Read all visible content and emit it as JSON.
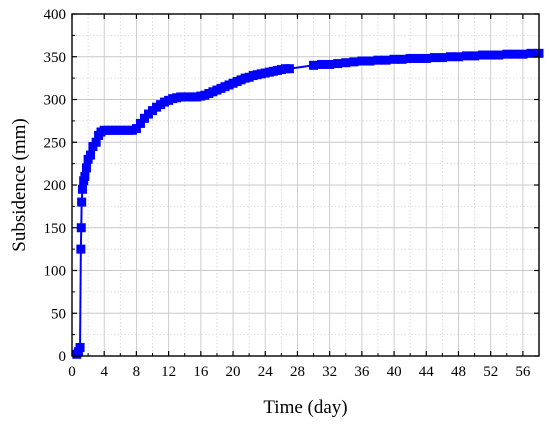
{
  "chart_data": {
    "type": "line",
    "xlabel": "Time (day)",
    "ylabel": "Subsidence (mm)",
    "xlim": [
      0,
      58
    ],
    "ylim": [
      0,
      400
    ],
    "x_ticks": [
      0,
      4,
      8,
      12,
      16,
      20,
      24,
      28,
      32,
      36,
      40,
      44,
      48,
      52,
      56
    ],
    "y_ticks": [
      0,
      50,
      100,
      150,
      200,
      250,
      300,
      350,
      400
    ],
    "grid": true,
    "minor_grid": true,
    "series": [
      {
        "color": "#0000ff",
        "marker": "square",
        "x": [
          0.6,
          0.8,
          1.0,
          1.1,
          1.15,
          1.2,
          1.3,
          1.45,
          1.6,
          1.8,
          2.0,
          2.3,
          2.6,
          3.0,
          3.3,
          3.6,
          4.0,
          4.5,
          5.0,
          5.5,
          6.0,
          6.5,
          7.0,
          7.5,
          8.0,
          8.5,
          9.0,
          9.5,
          10.0,
          10.5,
          11.0,
          11.5,
          12.0,
          12.5,
          13.0,
          13.5,
          14.0,
          14.5,
          15.0,
          15.5,
          16.0,
          16.5,
          17.0,
          17.5,
          18.0,
          18.5,
          19.0,
          19.5,
          20.0,
          20.5,
          21.0,
          21.5,
          22.0,
          22.5,
          23.0,
          23.5,
          24.0,
          24.5,
          25.0,
          25.5,
          26.0,
          26.5,
          27.0,
          30.0,
          31.0,
          32.0,
          33.0,
          34.0,
          35.0,
          36.0,
          37.0,
          38.0,
          39.0,
          40.0,
          41.0,
          42.0,
          43.0,
          44.0,
          45.0,
          46.0,
          47.0,
          48.0,
          49.0,
          50.0,
          51.0,
          52.0,
          53.0,
          54.0,
          55.0,
          56.0,
          57.0,
          58.0
        ],
        "y": [
          2,
          5,
          10,
          125,
          150,
          180,
          195,
          205,
          210,
          220,
          230,
          235,
          245,
          250,
          258,
          262,
          264,
          264,
          264,
          264,
          264,
          264,
          264,
          264,
          266,
          272,
          278,
          283,
          287,
          291,
          294,
          297,
          299,
          301,
          302,
          303,
          303,
          303,
          303,
          303,
          304,
          305,
          307,
          309,
          311,
          313,
          315,
          317,
          319,
          321,
          323,
          325,
          326,
          328,
          329,
          330,
          331,
          332,
          333,
          334,
          335,
          336,
          336,
          340,
          341,
          341,
          342,
          343,
          344,
          345,
          345,
          346,
          346,
          347,
          347,
          348,
          348,
          348,
          349,
          349,
          350,
          350,
          351,
          351,
          352,
          352,
          352,
          353,
          353,
          353,
          354,
          354
        ]
      }
    ]
  }
}
